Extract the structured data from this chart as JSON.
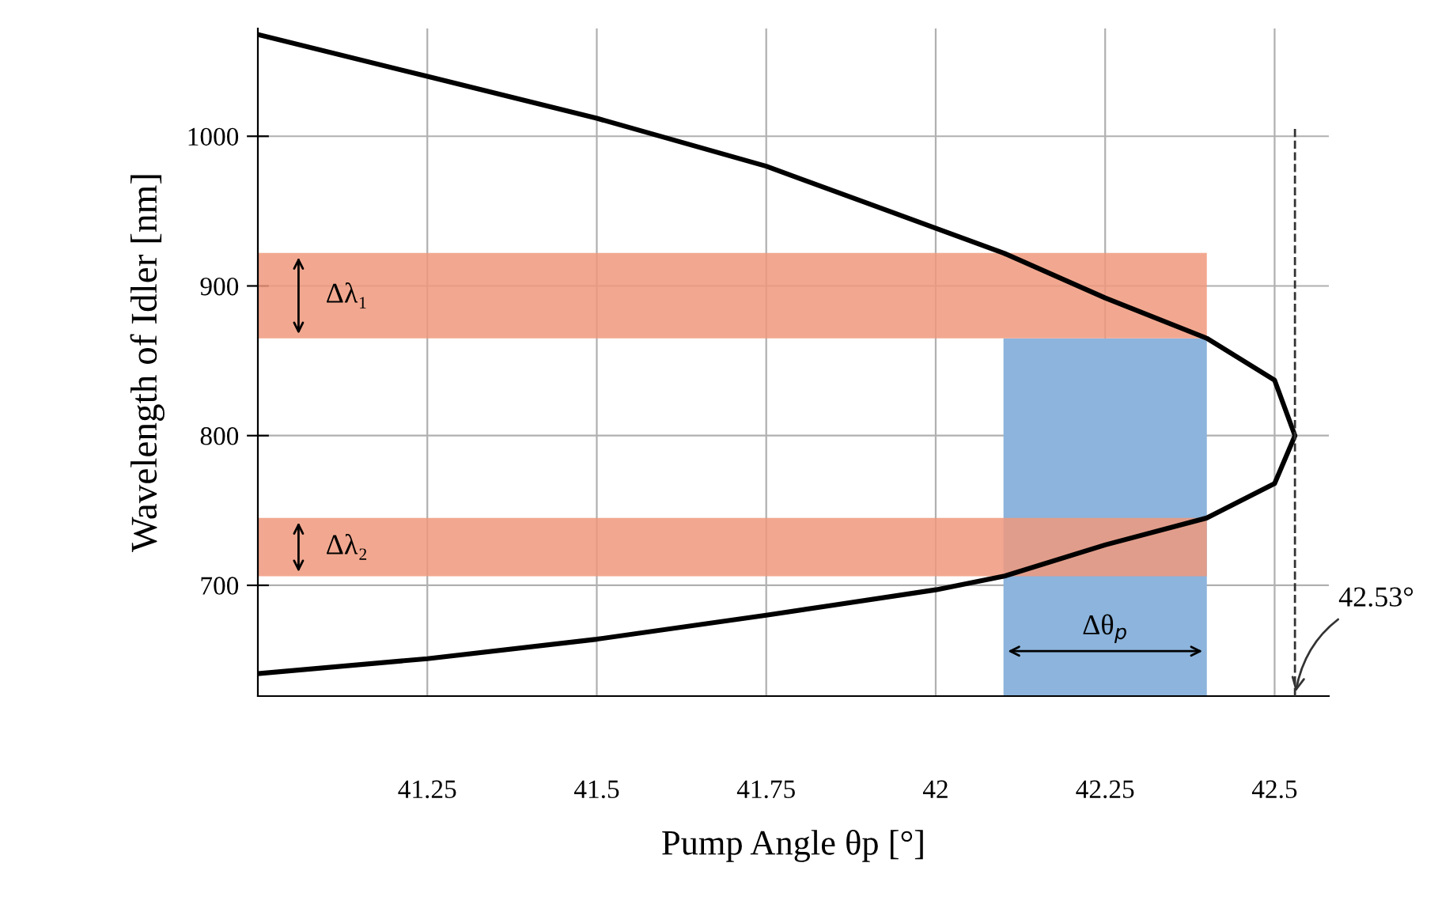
{
  "chart_data": {
    "type": "line",
    "xlabel": "Pump Angle θp [°]",
    "ylabel": "Wavelength of Idler [nm]",
    "xlim": [
      41.0,
      42.58
    ],
    "ylim": [
      626,
      1072
    ],
    "xticks": [
      41.25,
      41.5,
      41.75,
      42,
      42.25,
      42.5
    ],
    "yticks": [
      700,
      800,
      900,
      1000
    ],
    "grid": true,
    "series": [
      {
        "color": "#000000",
        "x": [
          41.0,
          41.25,
          41.5,
          41.75,
          42.0,
          42.1,
          42.25,
          42.4,
          42.5,
          42.53,
          42.5,
          42.4,
          42.25,
          42.1,
          41.75,
          41.5,
          41.25,
          41.0
        ],
        "values": [
          641,
          651,
          664,
          680,
          697,
          706,
          727,
          745,
          768,
          800,
          837,
          865,
          892,
          922,
          980,
          1012,
          1040,
          1068
        ]
      }
    ],
    "bands": [
      {
        "axis": "y",
        "from": 865,
        "to": 922,
        "color": "#f0997c"
      },
      {
        "axis": "y",
        "from": 706,
        "to": 745,
        "color": "#f0997c"
      },
      {
        "axis": "x",
        "from": 42.1,
        "to": 42.4,
        "color": "#8cb4dc"
      }
    ],
    "ref_lines": [
      {
        "axis": "x",
        "value": 42.53,
        "label": "42.53°",
        "line_style": "dashed"
      }
    ],
    "annotations": [
      "Δλ₁",
      "Δλ₂",
      "Δθ$_{p}$"
    ]
  }
}
